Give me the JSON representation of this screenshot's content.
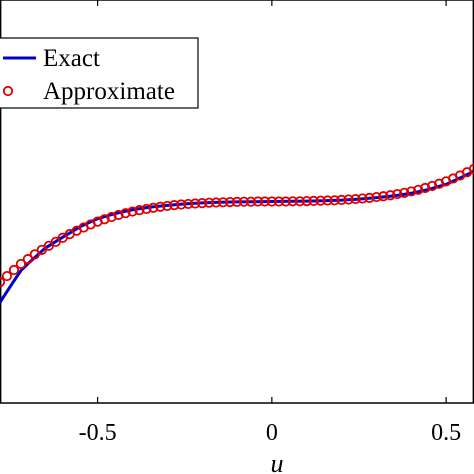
{
  "chart_data": {
    "type": "line",
    "xlabel": "u",
    "ylabel": "",
    "title": "",
    "xlim": [
      -0.78,
      0.58
    ],
    "ylim": [
      -1.0,
      1.0
    ],
    "x_ticks": [
      -0.5,
      0,
      0.5
    ],
    "x_tick_labels": [
      "-0.5",
      "0",
      "0.5"
    ],
    "grid": false,
    "legend_position": "top-left",
    "series": [
      {
        "name": "Exact",
        "style": "solid-line",
        "color": "#0000cc",
        "x": [
          -0.78,
          -0.75,
          -0.72,
          -0.7,
          -0.65,
          -0.6,
          -0.55,
          -0.5,
          -0.45,
          -0.4,
          -0.35,
          -0.3,
          -0.25,
          -0.2,
          -0.15,
          -0.1,
          -0.05,
          0,
          0.05,
          0.1,
          0.15,
          0.2,
          0.25,
          0.3,
          0.35,
          0.4,
          0.45,
          0.5,
          0.55,
          0.58
        ],
        "y": [
          -0.5,
          -0.42,
          -0.343,
          -0.309,
          -0.231,
          -0.177,
          -0.125,
          -0.085,
          -0.06,
          -0.041,
          -0.028,
          -0.019,
          -0.012,
          -0.007,
          -0.004,
          -0.002,
          -0.001,
          0,
          0.001,
          0.002,
          0.004,
          0.007,
          0.012,
          0.019,
          0.028,
          0.041,
          0.06,
          0.085,
          0.125,
          0.15
        ]
      },
      {
        "name": "Approximate",
        "style": "open-circle-markers",
        "color": "#dd0000",
        "x": [
          -0.78,
          -0.76,
          -0.74,
          -0.72,
          -0.7,
          -0.68,
          -0.66,
          -0.64,
          -0.62,
          -0.6,
          -0.58,
          -0.56,
          -0.54,
          -0.52,
          -0.5,
          -0.48,
          -0.46,
          -0.44,
          -0.42,
          -0.4,
          -0.38,
          -0.36,
          -0.34,
          -0.32,
          -0.3,
          -0.28,
          -0.26,
          -0.24,
          -0.22,
          -0.2,
          -0.18,
          -0.16,
          -0.14,
          -0.12,
          -0.1,
          -0.08,
          -0.06,
          -0.04,
          -0.02,
          0,
          0.02,
          0.04,
          0.06,
          0.08,
          0.1,
          0.12,
          0.14,
          0.16,
          0.18,
          0.2,
          0.22,
          0.24,
          0.26,
          0.28,
          0.3,
          0.32,
          0.34,
          0.36,
          0.38,
          0.4,
          0.42,
          0.44,
          0.46,
          0.48,
          0.5,
          0.52,
          0.54,
          0.56,
          0.58
        ],
        "y": [
          -0.4,
          -0.37,
          -0.34,
          -0.31,
          -0.286,
          -0.262,
          -0.24,
          -0.22,
          -0.2,
          -0.18,
          -0.162,
          -0.145,
          -0.129,
          -0.114,
          -0.1,
          -0.088,
          -0.077,
          -0.067,
          -0.058,
          -0.05,
          -0.043,
          -0.037,
          -0.031,
          -0.026,
          -0.022,
          -0.018,
          -0.015,
          -0.012,
          -0.01,
          -0.008,
          -0.006,
          -0.005,
          -0.004,
          -0.003,
          -0.002,
          -0.001,
          -0.001,
          0,
          0,
          0,
          0,
          0,
          0.001,
          0.001,
          0.002,
          0.003,
          0.004,
          0.005,
          0.006,
          0.008,
          0.01,
          0.012,
          0.015,
          0.018,
          0.022,
          0.026,
          0.031,
          0.037,
          0.043,
          0.05,
          0.058,
          0.067,
          0.077,
          0.088,
          0.1,
          0.114,
          0.129,
          0.145,
          0.162
        ]
      }
    ]
  }
}
